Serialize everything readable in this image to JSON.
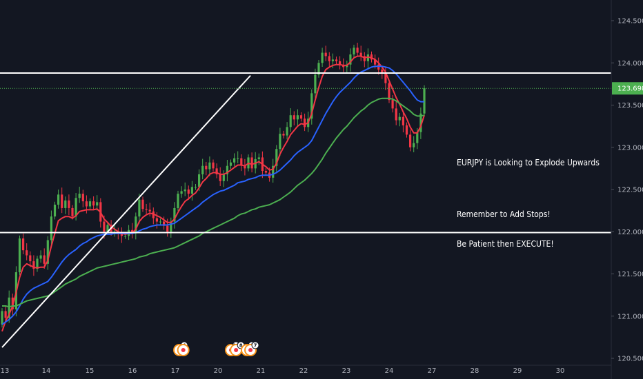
{
  "chart_data": {
    "type": "candlestick",
    "title": "",
    "symbol_note": "EURJPY",
    "y_axis": {
      "min": 120.5,
      "max": 124.5,
      "ticks": [
        "124.500",
        "124.000",
        "123.500",
        "123.000",
        "122.500",
        "122.000",
        "121.500",
        "121.000",
        "120.500"
      ]
    },
    "x_axis": {
      "ticks": [
        "13",
        "14",
        "15",
        "16",
        "17",
        "20",
        "21",
        "22",
        "23",
        "24",
        "27",
        "28",
        "29",
        "30"
      ]
    },
    "last_price": "123.698",
    "horizontal_levels": [
      123.88,
      121.99
    ],
    "trendline": {
      "from": {
        "x": 0,
        "y": 120.63
      },
      "to": {
        "x": 70.6,
        "y": 123.85
      }
    },
    "annotations": [
      "EURJPY is Looking to Explode Upwards",
      "Remember to Add Stops!",
      "Be Patient then EXECUTE!"
    ],
    "event_badges": [
      {
        "x": 50.4,
        "count": "4"
      },
      {
        "x": 51.5,
        "count": ""
      },
      {
        "x": 65.1,
        "count": "10"
      },
      {
        "x": 66.5,
        "count": "8"
      },
      {
        "x": 69.6,
        "count": "6"
      },
      {
        "x": 70.6,
        "count": "7"
      }
    ],
    "candle_series": [
      [
        120.9,
        121.06
      ],
      [
        121.06,
        120.98
      ],
      [
        120.98,
        121.22
      ],
      [
        121.22,
        121.08
      ],
      [
        121.08,
        121.52
      ],
      [
        121.52,
        121.92
      ],
      [
        121.92,
        121.78
      ],
      [
        121.78,
        121.72
      ],
      [
        121.72,
        121.65
      ],
      [
        121.65,
        121.56
      ],
      [
        121.56,
        121.68
      ],
      [
        121.68,
        121.72
      ],
      [
        121.72,
        121.62
      ],
      [
        121.62,
        121.9
      ],
      [
        121.9,
        122.18
      ],
      [
        122.18,
        122.32
      ],
      [
        122.32,
        122.44
      ],
      [
        122.44,
        122.28
      ],
      [
        122.28,
        122.37
      ],
      [
        122.37,
        122.28
      ],
      [
        122.28,
        122.18
      ],
      [
        122.18,
        122.4
      ],
      [
        122.4,
        122.45
      ],
      [
        122.45,
        122.36
      ],
      [
        122.36,
        122.3
      ],
      [
        122.3,
        122.36
      ],
      [
        122.36,
        122.31
      ],
      [
        122.31,
        122.35
      ],
      [
        122.35,
        122.12
      ],
      [
        122.12,
        122.0
      ],
      [
        122.0,
        122.08
      ],
      [
        122.08,
        122.0
      ],
      [
        122.0,
        122.0
      ],
      [
        122.0,
        121.98
      ],
      [
        121.98,
        121.95
      ],
      [
        121.95,
        121.95
      ],
      [
        121.95,
        122.02
      ],
      [
        122.02,
        121.98
      ],
      [
        121.98,
        122.18
      ],
      [
        122.18,
        122.38
      ],
      [
        122.38,
        122.27
      ],
      [
        122.27,
        122.26
      ],
      [
        122.26,
        122.24
      ],
      [
        122.24,
        122.16
      ],
      [
        122.16,
        122.12
      ],
      [
        122.12,
        122.12
      ],
      [
        122.12,
        122.07
      ],
      [
        122.07,
        122.0
      ],
      [
        122.0,
        122.12
      ],
      [
        122.12,
        122.28
      ],
      [
        122.28,
        122.45
      ],
      [
        122.45,
        122.48
      ],
      [
        122.48,
        122.5
      ],
      [
        122.5,
        122.45
      ],
      [
        122.45,
        122.53
      ],
      [
        122.53,
        122.53
      ],
      [
        122.53,
        122.68
      ],
      [
        122.68,
        122.78
      ],
      [
        122.78,
        122.74
      ],
      [
        122.74,
        122.82
      ],
      [
        122.82,
        122.75
      ],
      [
        122.75,
        122.68
      ],
      [
        122.68,
        122.6
      ],
      [
        122.6,
        122.68
      ],
      [
        122.68,
        122.78
      ],
      [
        122.78,
        122.82
      ],
      [
        122.82,
        122.87
      ],
      [
        122.87,
        122.87
      ],
      [
        122.87,
        122.79
      ],
      [
        122.79,
        122.75
      ],
      [
        122.75,
        122.88
      ],
      [
        122.88,
        122.75
      ],
      [
        122.75,
        122.86
      ],
      [
        122.86,
        122.88
      ],
      [
        122.88,
        122.72
      ],
      [
        122.72,
        122.7
      ],
      [
        122.7,
        122.64
      ],
      [
        122.64,
        122.78
      ],
      [
        122.78,
        122.98
      ],
      [
        122.98,
        123.16
      ],
      [
        123.16,
        123.14
      ],
      [
        123.14,
        123.24
      ],
      [
        123.24,
        123.38
      ],
      [
        123.38,
        123.33
      ],
      [
        123.33,
        123.38
      ],
      [
        123.38,
        123.34
      ],
      [
        123.34,
        123.24
      ],
      [
        123.24,
        123.34
      ],
      [
        123.34,
        123.64
      ],
      [
        123.64,
        123.86
      ],
      [
        123.86,
        124.0
      ],
      [
        124.0,
        124.12
      ],
      [
        124.12,
        124.08
      ],
      [
        124.08,
        124.02
      ],
      [
        124.02,
        124.04
      ],
      [
        124.04,
        124.02
      ],
      [
        124.02,
        123.97
      ],
      [
        123.97,
        123.95
      ],
      [
        123.95,
        123.98
      ],
      [
        123.98,
        124.1
      ],
      [
        124.1,
        124.18
      ],
      [
        124.18,
        124.12
      ],
      [
        124.12,
        124.08
      ],
      [
        124.08,
        124.02
      ],
      [
        124.02,
        124.1
      ],
      [
        124.1,
        124.04
      ],
      [
        124.04,
        123.98
      ],
      [
        123.98,
        123.92
      ],
      [
        123.92,
        123.88
      ],
      [
        123.88,
        123.76
      ],
      [
        123.76,
        123.56
      ],
      [
        123.56,
        123.46
      ],
      [
        123.46,
        123.32
      ],
      [
        123.32,
        123.36
      ],
      [
        123.36,
        123.26
      ],
      [
        123.26,
        123.15
      ],
      [
        123.15,
        123.0
      ],
      [
        123.0,
        123.05
      ],
      [
        123.05,
        123.18
      ],
      [
        123.18,
        123.4
      ],
      [
        123.4,
        123.7
      ]
    ],
    "indicators": [
      {
        "color": "#f23645",
        "values": [
          120.82,
          120.94,
          121.02,
          121.12,
          121.28,
          121.46,
          121.58,
          121.62,
          121.6,
          121.58,
          121.57,
          121.58,
          121.58,
          121.66,
          121.83,
          121.98,
          122.13,
          122.16,
          122.18,
          122.18,
          122.16,
          122.19,
          122.24,
          122.25,
          122.26,
          122.26,
          122.26,
          122.27,
          122.23,
          122.15,
          122.11,
          122.06,
          122.03,
          122.0,
          121.98,
          121.97,
          121.98,
          121.98,
          122.03,
          122.12,
          122.17,
          122.2,
          122.22,
          122.21,
          122.19,
          122.17,
          122.14,
          122.11,
          122.11,
          122.15,
          122.23,
          122.3,
          122.36,
          122.39,
          122.43,
          122.46,
          122.52,
          122.59,
          122.63,
          122.68,
          122.7,
          122.7,
          122.68,
          122.68,
          122.7,
          122.73,
          122.76,
          122.79,
          122.79,
          122.78,
          122.81,
          122.8,
          122.81,
          122.83,
          122.8,
          122.77,
          122.73,
          122.74,
          122.81,
          122.92,
          123.0,
          123.07,
          123.15,
          123.2,
          123.25,
          123.28,
          123.27,
          123.29,
          123.4,
          123.56,
          123.71,
          123.84,
          123.92,
          123.95,
          123.97,
          123.98,
          123.98,
          123.97,
          123.97,
          124.01,
          124.06,
          124.08,
          124.08,
          124.06,
          124.07,
          124.06,
          124.04,
          124.0,
          123.95,
          123.89,
          123.79,
          123.69,
          123.59,
          123.51,
          123.42,
          123.34,
          123.24,
          123.17,
          123.17,
          123.25,
          123.38
        ]
      },
      {
        "color": "#2962ff",
        "values": [
          120.9,
          120.93,
          120.96,
          121.0,
          121.05,
          121.12,
          121.2,
          121.26,
          121.3,
          121.33,
          121.35,
          121.37,
          121.39,
          121.41,
          121.46,
          121.52,
          121.58,
          121.64,
          121.69,
          121.73,
          121.76,
          121.79,
          121.83,
          121.86,
          121.88,
          121.91,
          121.93,
          121.95,
          121.96,
          121.97,
          121.97,
          121.97,
          121.98,
          121.98,
          121.98,
          121.98,
          121.98,
          121.98,
          121.99,
          122.01,
          122.03,
          122.04,
          122.06,
          122.07,
          122.08,
          122.08,
          122.08,
          122.08,
          122.09,
          122.1,
          122.13,
          122.16,
          122.19,
          122.22,
          122.25,
          122.28,
          122.31,
          122.35,
          122.38,
          122.41,
          122.44,
          122.46,
          122.48,
          122.49,
          122.51,
          122.53,
          122.55,
          122.58,
          122.59,
          122.6,
          122.62,
          122.63,
          122.64,
          122.66,
          122.67,
          122.67,
          122.67,
          122.68,
          122.7,
          122.73,
          122.77,
          122.81,
          122.85,
          122.9,
          122.94,
          122.97,
          123.0,
          123.03,
          123.08,
          123.16,
          123.24,
          123.32,
          123.4,
          123.47,
          123.54,
          123.6,
          123.65,
          123.69,
          123.73,
          123.77,
          123.82,
          123.86,
          123.89,
          123.91,
          123.93,
          123.95,
          123.96,
          123.96,
          123.96,
          123.95,
          123.94,
          123.91,
          123.87,
          123.82,
          123.77,
          123.72,
          123.67,
          123.61,
          123.56,
          123.54,
          123.54
        ]
      },
      {
        "color": "#4caf50",
        "values": [
          121.12,
          121.12,
          121.11,
          121.12,
          121.12,
          121.14,
          121.16,
          121.18,
          121.19,
          121.2,
          121.21,
          121.22,
          121.23,
          121.24,
          121.26,
          121.29,
          121.32,
          121.35,
          121.38,
          121.4,
          121.42,
          121.44,
          121.47,
          121.49,
          121.51,
          121.53,
          121.55,
          121.57,
          121.58,
          121.59,
          121.6,
          121.61,
          121.62,
          121.63,
          121.64,
          121.65,
          121.66,
          121.67,
          121.68,
          121.7,
          121.71,
          121.72,
          121.74,
          121.75,
          121.76,
          121.77,
          121.78,
          121.79,
          121.8,
          121.81,
          121.83,
          121.85,
          121.87,
          121.89,
          121.91,
          121.93,
          121.95,
          121.98,
          122.0,
          122.02,
          122.04,
          122.06,
          122.08,
          122.1,
          122.12,
          122.14,
          122.16,
          122.19,
          122.21,
          122.22,
          122.24,
          122.26,
          122.27,
          122.29,
          122.3,
          122.31,
          122.32,
          122.34,
          122.36,
          122.38,
          122.41,
          122.44,
          122.47,
          122.51,
          122.55,
          122.58,
          122.61,
          122.65,
          122.69,
          122.74,
          122.8,
          122.86,
          122.93,
          122.99,
          123.05,
          123.11,
          123.16,
          123.21,
          123.25,
          123.3,
          123.35,
          123.39,
          123.43,
          123.46,
          123.5,
          123.53,
          123.55,
          123.57,
          123.58,
          123.58,
          123.58,
          123.57,
          123.55,
          123.52,
          123.49,
          123.46,
          123.43,
          123.39,
          123.37,
          123.37,
          123.38
        ]
      }
    ]
  }
}
